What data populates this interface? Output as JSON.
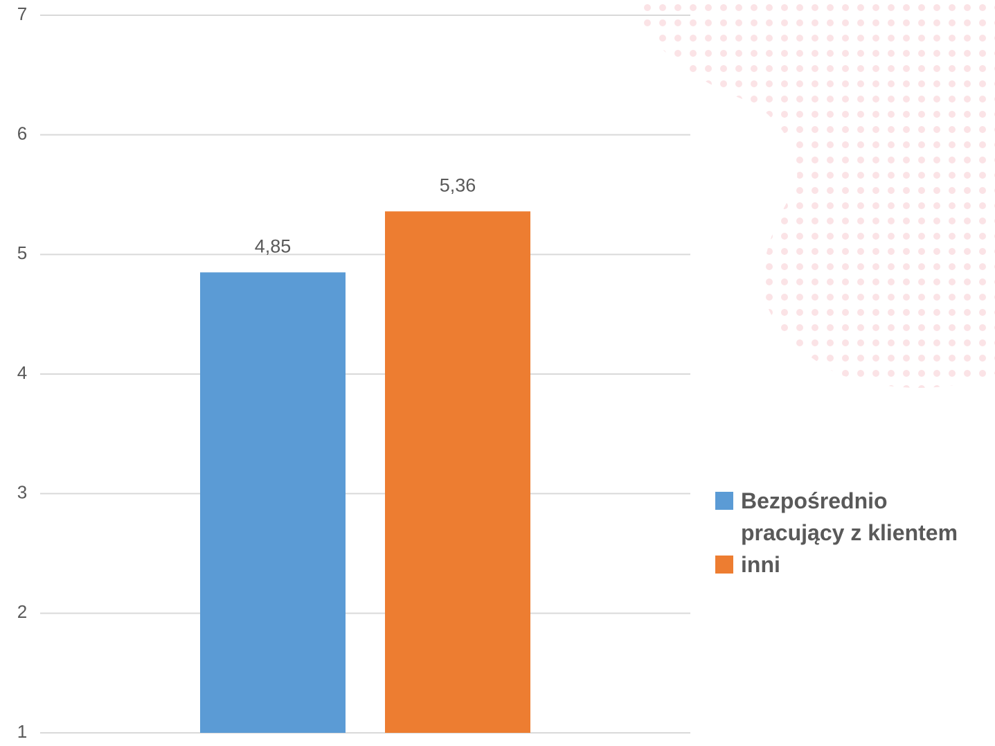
{
  "chart_data": {
    "type": "bar",
    "categories": [
      null
    ],
    "series": [
      {
        "name": "Bezpośrednio pracujący z klientem",
        "color": "#5b9bd5",
        "values": [
          4.85
        ],
        "value_labels": [
          "4,85"
        ]
      },
      {
        "name": "inni",
        "color": "#ed7d31",
        "values": [
          5.36
        ],
        "value_labels": [
          "5,36"
        ]
      }
    ],
    "ylim": [
      1,
      7
    ],
    "yticks": [
      1,
      2,
      3,
      4,
      5,
      6,
      7
    ],
    "grid": true,
    "legend": "right"
  }
}
